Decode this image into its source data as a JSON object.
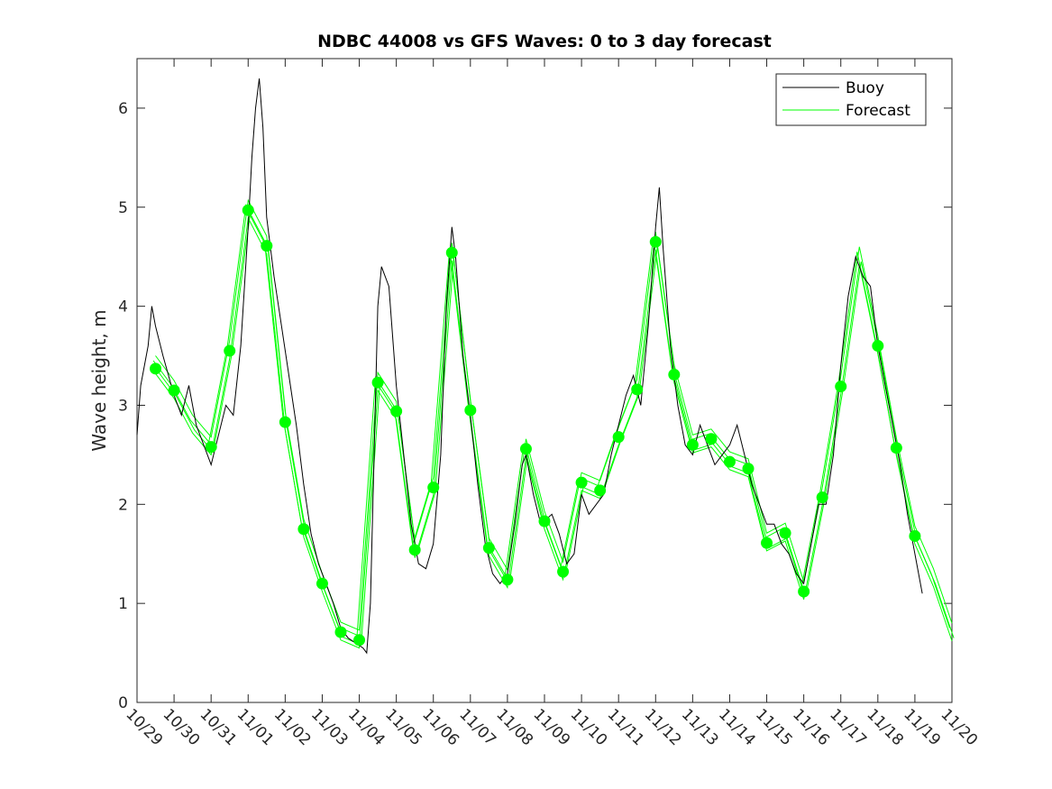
{
  "chart_data": {
    "type": "line",
    "title": "NDBC 44008 vs GFS Waves: 0 to 3 day forecast",
    "xlabel": "",
    "ylabel": "Wave height, m",
    "ylim": [
      0,
      6.5
    ],
    "xlim_days": [
      0,
      22
    ],
    "yticks": [
      0,
      1,
      2,
      3,
      4,
      5,
      6
    ],
    "xtick_labels": [
      "10/29",
      "10/30",
      "10/31",
      "11/01",
      "11/02",
      "11/03",
      "11/04",
      "11/05",
      "11/06",
      "11/07",
      "11/08",
      "11/09",
      "11/10",
      "11/11",
      "11/12",
      "11/13",
      "11/14",
      "11/15",
      "11/16",
      "11/17",
      "11/18",
      "11/19",
      "11/20"
    ],
    "legend": {
      "placement": "top-right",
      "entries": [
        "Buoy",
        "Forecast"
      ]
    },
    "colors": {
      "buoy": "#000000",
      "forecast": "#00ff00"
    },
    "series": [
      {
        "name": "Buoy",
        "x_days": [
          0,
          0.1,
          0.3,
          0.4,
          0.5,
          0.7,
          1.0,
          1.2,
          1.4,
          1.6,
          1.8,
          2.0,
          2.2,
          2.4,
          2.6,
          2.8,
          3.0,
          3.1,
          3.2,
          3.3,
          3.4,
          3.5,
          3.7,
          3.9,
          4.1,
          4.3,
          4.5,
          4.7,
          4.9,
          5.1,
          5.3,
          5.5,
          5.7,
          5.9,
          6.1,
          6.2,
          6.3,
          6.4,
          6.5,
          6.6,
          6.8,
          7.0,
          7.2,
          7.4,
          7.6,
          7.8,
          8.0,
          8.2,
          8.35,
          8.5,
          8.6,
          8.8,
          9.0,
          9.2,
          9.4,
          9.6,
          9.8,
          10.0,
          10.2,
          10.4,
          10.5,
          10.7,
          10.9,
          11.2,
          11.4,
          11.6,
          11.8,
          12.0,
          12.2,
          12.4,
          12.6,
          12.8,
          13.0,
          13.2,
          13.4,
          13.6,
          13.8,
          14.0,
          14.1,
          14.2,
          14.4,
          14.6,
          14.8,
          15.0,
          15.2,
          15.4,
          15.6,
          15.8,
          16.0,
          16.2,
          16.4,
          16.6,
          16.8,
          17.0,
          17.2,
          17.4,
          17.6,
          17.8,
          18.0,
          18.2,
          18.4,
          18.6,
          18.8,
          19.0,
          19.2,
          19.4,
          19.6,
          19.8,
          20.0,
          20.2,
          20.4,
          20.6,
          20.8,
          21.0,
          21.2
        ],
        "values": [
          2.7,
          3.2,
          3.6,
          4.0,
          3.8,
          3.5,
          3.1,
          2.9,
          3.2,
          2.8,
          2.6,
          2.4,
          2.7,
          3.0,
          2.9,
          3.6,
          4.8,
          5.5,
          6.0,
          6.3,
          5.8,
          4.9,
          4.3,
          3.8,
          3.3,
          2.8,
          2.2,
          1.7,
          1.4,
          1.2,
          1.0,
          0.75,
          0.65,
          0.6,
          0.55,
          0.5,
          1.0,
          2.5,
          4.0,
          4.4,
          4.2,
          3.2,
          2.5,
          1.8,
          1.4,
          1.35,
          1.6,
          2.5,
          4.0,
          4.8,
          4.5,
          3.5,
          2.9,
          2.2,
          1.6,
          1.3,
          1.2,
          1.3,
          1.8,
          2.4,
          2.5,
          2.1,
          1.8,
          1.9,
          1.7,
          1.4,
          1.5,
          2.1,
          1.9,
          2.0,
          2.1,
          2.5,
          2.8,
          3.1,
          3.3,
          3.0,
          3.8,
          4.8,
          5.2,
          4.6,
          3.6,
          3.0,
          2.6,
          2.5,
          2.8,
          2.6,
          2.4,
          2.5,
          2.6,
          2.8,
          2.5,
          2.2,
          2.0,
          1.8,
          1.8,
          1.6,
          1.5,
          1.3,
          1.2,
          1.6,
          2.0,
          2.0,
          2.5,
          3.4,
          4.1,
          4.5,
          4.3,
          4.2,
          3.6,
          3.2,
          2.8,
          2.4,
          1.9,
          1.5,
          1.1
        ]
      },
      {
        "name": "Forecast",
        "x_days": [
          0.5,
          1,
          1.5,
          2,
          2.5,
          3,
          3.5,
          4,
          4.5,
          5,
          5.5,
          6,
          6.5,
          7,
          7.5,
          8,
          8.5,
          9,
          9.5,
          10,
          10.5,
          11,
          11.5,
          12,
          12.5,
          13,
          13.5,
          14,
          14.5,
          15,
          15.5,
          16,
          16.5,
          17,
          17.5,
          18,
          18.5,
          19,
          19.5,
          20,
          20.5,
          21,
          21.5,
          22
        ],
        "values": [
          3.4,
          3.15,
          2.8,
          2.58,
          3.55,
          4.97,
          4.61,
          2.83,
          1.75,
          1.2,
          0.71,
          0.63,
          3.23,
          2.94,
          1.54,
          2.17,
          4.54,
          2.95,
          1.56,
          1.24,
          2.56,
          1.83,
          1.32,
          2.22,
          2.14,
          2.68,
          3.16,
          4.65,
          3.31,
          2.6,
          2.66,
          2.43,
          2.36,
          1.61,
          1.71,
          1.12,
          2.07,
          3.19,
          4.5,
          3.6,
          2.57,
          1.68,
          1.25,
          0.7
        ]
      }
    ],
    "forecast_markers": {
      "x_days": [
        0.5,
        1,
        2,
        2.5,
        3,
        3.5,
        4,
        4.5,
        5,
        5.5,
        6,
        6.5,
        7,
        7.5,
        8,
        8.5,
        9,
        9.5,
        10,
        10.5,
        11,
        11.5,
        12,
        12.5,
        13,
        13.5,
        14,
        14.5,
        15,
        15.5,
        16,
        16.5,
        17,
        17.5,
        18,
        18.5,
        19,
        20,
        20.5,
        21
      ],
      "values": [
        3.37,
        3.15,
        2.58,
        3.55,
        4.97,
        4.61,
        2.83,
        1.75,
        1.2,
        0.71,
        0.63,
        3.23,
        2.94,
        1.54,
        2.17,
        4.54,
        2.95,
        1.56,
        1.24,
        2.56,
        1.83,
        1.32,
        2.22,
        2.14,
        2.68,
        3.16,
        4.65,
        3.31,
        2.6,
        2.66,
        2.43,
        2.36,
        1.61,
        1.71,
        1.12,
        2.07,
        3.19,
        3.6,
        2.57,
        1.68
      ]
    }
  }
}
